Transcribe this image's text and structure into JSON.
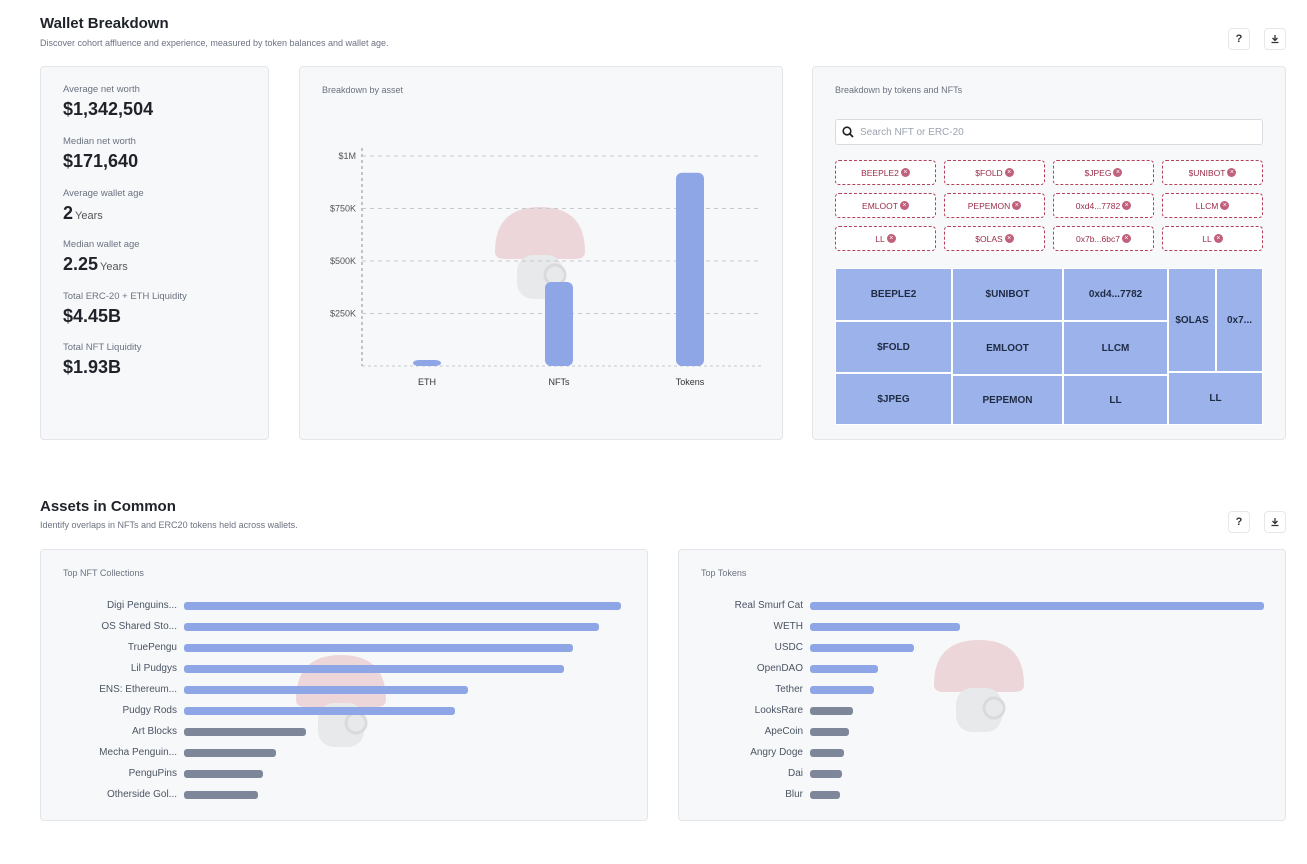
{
  "wallet": {
    "title": "Wallet Breakdown",
    "subtitle": "Discover cohort affluence and experience, measured by token balances and wallet age.",
    "help": "?",
    "download": "⤓"
  },
  "stats": [
    {
      "label": "Average net worth",
      "value": "$1,342,504",
      "unit": ""
    },
    {
      "label": "Median net worth",
      "value": "$171,640",
      "unit": ""
    },
    {
      "label": "Average wallet age",
      "value": "2",
      "unit": "Years"
    },
    {
      "label": "Median wallet age",
      "value": "2.25",
      "unit": "Years"
    },
    {
      "label": "Total ERC-20 + ETH Liquidity",
      "value": "$4.45B",
      "unit": ""
    },
    {
      "label": "Total NFT Liquidity",
      "value": "$1.93B",
      "unit": ""
    }
  ],
  "asset_chart": {
    "label": "Breakdown by asset"
  },
  "tokens_nfts": {
    "label": "Breakdown by tokens and NFTs",
    "search_placeholder": "Search NFT or ERC-20",
    "chips": [
      "BEEPLE2",
      "$FOLD",
      "$JPEG",
      "$UNIBOT",
      "EMLOOT",
      "PEPEMON",
      "0xd4...7782",
      "LLCM",
      "LL",
      "$OLAS",
      "0x7b...6bc7",
      "LL"
    ],
    "treemap": [
      "BEEPLE2",
      "$UNIBOT",
      "0xd4...7782",
      "$OLAS",
      "0x7...",
      "$FOLD",
      "EMLOOT",
      "LLCM",
      "$JPEG",
      "PEPEMON",
      "LL",
      "LL"
    ]
  },
  "common": {
    "title": "Assets in Common",
    "subtitle": "Identify overlaps in NFTs and ERC20 tokens held across wallets.",
    "help": "?",
    "download": "⤓",
    "nft_label": "Top NFT Collections",
    "token_label": "Top Tokens"
  },
  "colors": {
    "primary_bar": "#8ea6e6",
    "secondary_bar": "#7e8799",
    "chip_border": "#b4405a"
  },
  "chart_data": [
    {
      "type": "bar",
      "title": "Breakdown by asset",
      "categories": [
        "ETH",
        "NFTs",
        "Tokens"
      ],
      "values": [
        10000,
        400000,
        920000
      ],
      "ylim": [
        0,
        1000000
      ],
      "yticks": [
        "$250K",
        "$500K",
        "$750K",
        "$1M"
      ],
      "ytick_values": [
        250000,
        500000,
        750000,
        1000000
      ],
      "grid": true
    },
    {
      "type": "bar",
      "orientation": "horizontal",
      "title": "Top NFT Collections",
      "categories": [
        "Digi Penguins...",
        "OS Shared Sto...",
        "TruePengu",
        "Lil Pudgys",
        "ENS: Ethereum...",
        "Pudgy Rods",
        "Art Blocks",
        "Mecha Penguin...",
        "PenguPins",
        "Otherside Gol..."
      ],
      "values": [
        100,
        95,
        89,
        87,
        65,
        62,
        28,
        21,
        18,
        17
      ],
      "highlight_count": 6
    },
    {
      "type": "bar",
      "orientation": "horizontal",
      "title": "Top Tokens",
      "categories": [
        "Real Smurf Cat",
        "WETH",
        "USDC",
        "OpenDAO",
        "Tether",
        "LooksRare",
        "ApeCoin",
        "Angry Doge",
        "Dai",
        "Blur"
      ],
      "values": [
        100,
        33,
        23,
        15,
        14,
        9.5,
        8.5,
        7.5,
        7,
        6.5
      ],
      "highlight_count": 5
    }
  ]
}
